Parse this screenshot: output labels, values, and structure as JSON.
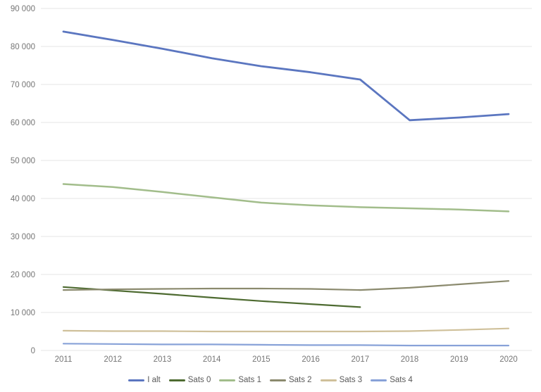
{
  "chart_data": {
    "type": "line",
    "title": "",
    "xlabel": "",
    "ylabel": "",
    "categories": [
      2011,
      2012,
      2013,
      2014,
      2015,
      2016,
      2017,
      2018,
      2019,
      2020
    ],
    "series": [
      {
        "name": "I alt",
        "color": "#5b76c0",
        "stroke_width": 2.8,
        "values": [
          83900,
          81700,
          79400,
          76900,
          74800,
          73200,
          71300,
          60600,
          61300,
          62200
        ]
      },
      {
        "name": "Sats 0",
        "color": "#4e6b31",
        "stroke_width": 2.2,
        "values": [
          16700,
          15800,
          14900,
          13900,
          13000,
          12200,
          11400,
          null,
          null,
          null
        ]
      },
      {
        "name": "Sats 1",
        "color": "#a2bd8b",
        "stroke_width": 2.5,
        "values": [
          43800,
          43000,
          41700,
          40300,
          38900,
          38200,
          37700,
          37400,
          37100,
          36600
        ]
      },
      {
        "name": "Sats 2",
        "color": "#8b8a6e",
        "stroke_width": 2.2,
        "values": [
          15900,
          16100,
          16200,
          16300,
          16300,
          16200,
          15900,
          16500,
          17400,
          18300
        ]
      },
      {
        "name": "Sats 3",
        "color": "#cfc09a",
        "stroke_width": 2.2,
        "values": [
          5200,
          5100,
          5100,
          5000,
          5000,
          5000,
          5000,
          5100,
          5400,
          5800
        ]
      },
      {
        "name": "Sats 4",
        "color": "#88a2d8",
        "stroke_width": 2.2,
        "values": [
          1800,
          1700,
          1600,
          1600,
          1500,
          1400,
          1400,
          1300,
          1300,
          1300
        ]
      }
    ],
    "ylim": [
      0,
      90000
    ],
    "ytick_step": 10000,
    "ytick_labels": [
      "0",
      "10 000",
      "20 000",
      "30 000",
      "40 000",
      "50 000",
      "60 000",
      "70 000",
      "80 000",
      "90 000"
    ],
    "xtick_labels": [
      "2011",
      "2012",
      "2013",
      "2014",
      "2015",
      "2016",
      "2017",
      "2018",
      "2019",
      "2020"
    ],
    "grid": true,
    "gridline_color": "#e6e6e6",
    "background_color": "#ffffff",
    "legend_position": "bottom"
  }
}
